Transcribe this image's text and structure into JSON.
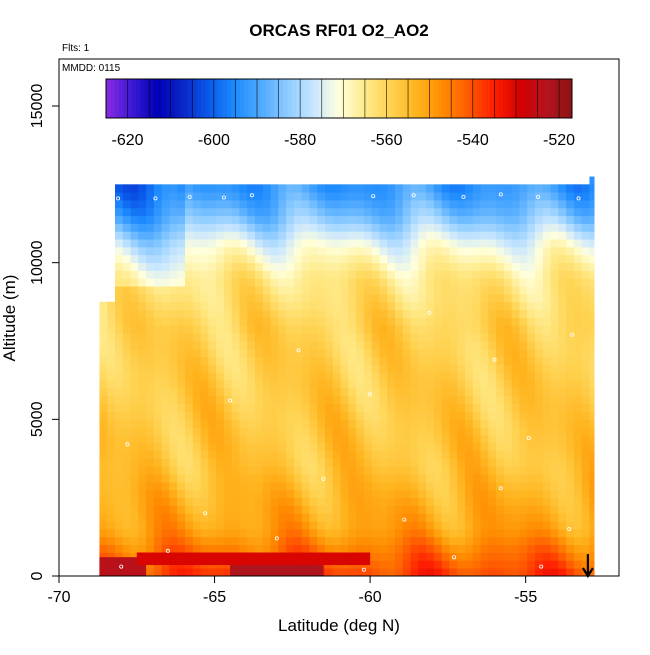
{
  "chart_data": {
    "type": "heatmap",
    "title": "ORCAS RF01 O2_AO2",
    "subtitle_lines": [
      "Flts: 1",
      "MMDD: 0115"
    ],
    "xlabel": "Latitude (deg N)",
    "ylabel": "Altitude (m)",
    "xlim": [
      -70,
      -52
    ],
    "ylim": [
      0,
      16500
    ],
    "x_ticks": [
      -70,
      -65,
      -60,
      -55
    ],
    "x_tick_labels": [
      "-70",
      "-65",
      "-60",
      "-55"
    ],
    "y_ticks": [
      0,
      5000,
      10000,
      15000
    ],
    "y_tick_labels": [
      "0",
      "5000",
      "10000",
      "15000"
    ],
    "colorbar": {
      "range": [
        -625,
        -517
      ],
      "ticks": [
        -620,
        -600,
        -580,
        -560,
        -540,
        -520
      ],
      "tick_labels": [
        "-620",
        "-600",
        "-580",
        "-560",
        "-540",
        "-520"
      ],
      "colors": [
        "#8a2be2",
        "#3c1ad6",
        "#0000b4",
        "#0a28c8",
        "#0a5aeb",
        "#1e8cff",
        "#50aaff",
        "#8ccbff",
        "#c8e6ff",
        "#ffffdc",
        "#ffeb8c",
        "#ffd250",
        "#ffb41e",
        "#ff8c00",
        "#ff5a00",
        "#ff1e00",
        "#d20000",
        "#b4141e",
        "#8c1414"
      ]
    },
    "field": {
      "lat_range": [
        -68.7,
        -52.8
      ],
      "alt_top": 12300,
      "profile_alt": [
        0,
        300,
        800,
        1500,
        2500,
        3500,
        5000,
        6500,
        8000,
        9500,
        10500,
        11500,
        12300
      ],
      "profile_value": [
        -538,
        -540,
        -544,
        -550,
        -553,
        -556,
        -557,
        -558,
        -559,
        -564,
        -572,
        -585,
        -592
      ]
    },
    "sample_points": [
      [
        -68.0,
        300
      ],
      [
        -66.5,
        800
      ],
      [
        -65.3,
        2000
      ],
      [
        -63.0,
        1200
      ],
      [
        -61.5,
        3100
      ],
      [
        -60.2,
        200
      ],
      [
        -58.9,
        1800
      ],
      [
        -57.3,
        600
      ],
      [
        -55.8,
        2800
      ],
      [
        -54.5,
        300
      ],
      [
        -53.6,
        1500
      ],
      [
        -67.8,
        4200
      ],
      [
        -64.5,
        5600
      ],
      [
        -62.3,
        7200
      ],
      [
        -60.0,
        5800
      ],
      [
        -58.1,
        8400
      ],
      [
        -56.0,
        6900
      ],
      [
        -54.9,
        4400
      ],
      [
        -53.5,
        7700
      ],
      [
        -66.9,
        12050
      ],
      [
        -65.8,
        12100
      ],
      [
        -64.7,
        12080
      ],
      [
        -63.8,
        12150
      ],
      [
        -59.9,
        12120
      ],
      [
        -58.6,
        12150
      ],
      [
        -57.0,
        12100
      ],
      [
        -55.8,
        12180
      ],
      [
        -54.6,
        12100
      ],
      [
        -53.3,
        12050
      ],
      [
        -68.4,
        12000
      ],
      [
        -68.1,
        12050
      ]
    ],
    "annotations": [
      {
        "type": "arrow-down",
        "lat": -53.0,
        "alt_from": 700,
        "alt_to": 0
      }
    ]
  }
}
